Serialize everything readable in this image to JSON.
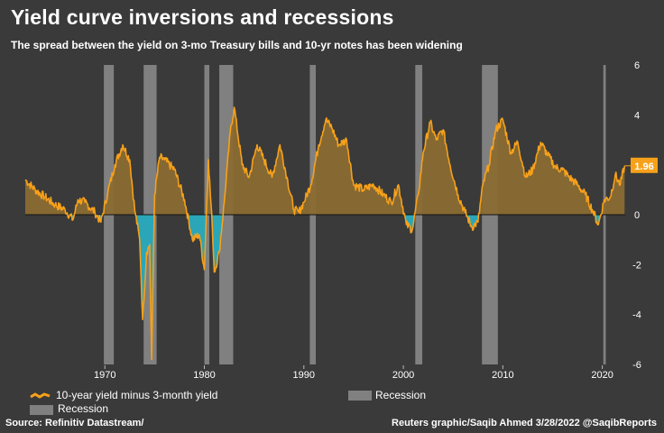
{
  "title": "Yield curve inversions and recessions",
  "subtitle": "The spread between the yield on 3-mo Treasury bills and 10-yr notes has been widening",
  "legend": {
    "line_label": "10-year yield minus 3-month yield",
    "recession_label_1": "Recession",
    "recession_label_2": "Recession"
  },
  "source": "Source: Refinitiv Datastream/",
  "credit": "Reuters graphic/Saqib Ahmed 3/28/2022 @SaqibReports",
  "colors": {
    "background": "#3a3a3a",
    "line": "#f7a11a",
    "area_positive": "#8a6a32",
    "area_negative": "#2aa6b8",
    "recession": "#808080",
    "callout": "#f7a11a"
  },
  "chart_data": {
    "type": "area",
    "title": "Yield curve inversions and recessions",
    "ylim": [
      -6,
      6
    ],
    "xlim": [
      1962,
      2022.3
    ],
    "yticks": [
      6,
      4,
      2,
      0,
      -2,
      -4,
      -6
    ],
    "xticks": [
      1970,
      1980,
      1990,
      2000,
      2010,
      2020
    ],
    "latest_value_label": "1.96",
    "grid": false,
    "recessions": [
      [
        1969.9,
        1970.9
      ],
      [
        1973.9,
        1975.2
      ],
      [
        1980.0,
        1980.5
      ],
      [
        1981.5,
        1982.9
      ],
      [
        1990.6,
        1991.2
      ],
      [
        2001.2,
        2001.9
      ],
      [
        2007.9,
        2009.5
      ],
      [
        2020.1,
        2020.35
      ]
    ],
    "series": [
      {
        "name": "10-year yield minus 3-month yield",
        "points": [
          [
            1962.0,
            1.4
          ],
          [
            1963.0,
            1.0
          ],
          [
            1964.0,
            0.7
          ],
          [
            1965.0,
            0.4
          ],
          [
            1966.0,
            0.2
          ],
          [
            1966.8,
            -0.2
          ],
          [
            1967.3,
            0.6
          ],
          [
            1968.0,
            0.5
          ],
          [
            1969.0,
            0.1
          ],
          [
            1969.6,
            -0.3
          ],
          [
            1970.3,
            0.9
          ],
          [
            1971.0,
            2.0
          ],
          [
            1971.8,
            2.8
          ],
          [
            1972.5,
            2.2
          ],
          [
            1973.0,
            0.2
          ],
          [
            1973.5,
            -1.0
          ],
          [
            1973.8,
            -4.2
          ],
          [
            1974.2,
            -1.5
          ],
          [
            1974.5,
            -1.2
          ],
          [
            1974.7,
            -5.8
          ],
          [
            1975.0,
            0.8
          ],
          [
            1975.5,
            2.3
          ],
          [
            1976.0,
            2.2
          ],
          [
            1977.0,
            1.8
          ],
          [
            1978.0,
            0.6
          ],
          [
            1978.8,
            -1.0
          ],
          [
            1979.5,
            -0.8
          ],
          [
            1980.0,
            -2.2
          ],
          [
            1980.4,
            2.2
          ],
          [
            1980.8,
            -0.5
          ],
          [
            1981.0,
            -2.3
          ],
          [
            1981.5,
            -1.5
          ],
          [
            1982.0,
            0.5
          ],
          [
            1982.6,
            3.3
          ],
          [
            1983.0,
            4.3
          ],
          [
            1983.8,
            2.0
          ],
          [
            1984.5,
            1.5
          ],
          [
            1985.3,
            2.8
          ],
          [
            1986.0,
            2.2
          ],
          [
            1986.8,
            1.5
          ],
          [
            1987.6,
            2.8
          ],
          [
            1988.3,
            1.5
          ],
          [
            1989.0,
            0.2
          ],
          [
            1989.5,
            0.1
          ],
          [
            1990.0,
            0.5
          ],
          [
            1990.7,
            1.2
          ],
          [
            1991.5,
            2.8
          ],
          [
            1992.2,
            3.8
          ],
          [
            1992.8,
            3.5
          ],
          [
            1993.5,
            2.8
          ],
          [
            1994.3,
            3.0
          ],
          [
            1995.0,
            1.2
          ],
          [
            1996.0,
            1.0
          ],
          [
            1997.0,
            1.2
          ],
          [
            1998.0,
            0.8
          ],
          [
            1998.8,
            0.5
          ],
          [
            1999.5,
            1.2
          ],
          [
            2000.3,
            -0.4
          ],
          [
            2000.9,
            -0.6
          ],
          [
            2001.5,
            0.8
          ],
          [
            2002.0,
            2.5
          ],
          [
            2002.7,
            3.7
          ],
          [
            2003.3,
            3.0
          ],
          [
            2004.0,
            3.4
          ],
          [
            2004.7,
            2.0
          ],
          [
            2005.5,
            0.8
          ],
          [
            2006.2,
            0.1
          ],
          [
            2006.9,
            -0.5
          ],
          [
            2007.5,
            -0.3
          ],
          [
            2008.0,
            1.2
          ],
          [
            2008.6,
            2.0
          ],
          [
            2009.3,
            3.4
          ],
          [
            2010.0,
            3.8
          ],
          [
            2010.8,
            2.5
          ],
          [
            2011.5,
            2.9
          ],
          [
            2012.3,
            1.5
          ],
          [
            2013.0,
            1.8
          ],
          [
            2013.8,
            2.9
          ],
          [
            2014.5,
            2.4
          ],
          [
            2015.3,
            1.9
          ],
          [
            2016.0,
            1.8
          ],
          [
            2016.7,
            1.5
          ],
          [
            2017.5,
            1.2
          ],
          [
            2018.3,
            0.8
          ],
          [
            2019.0,
            0.2
          ],
          [
            2019.6,
            -0.4
          ],
          [
            2020.2,
            0.6
          ],
          [
            2020.8,
            0.7
          ],
          [
            2021.3,
            1.6
          ],
          [
            2021.8,
            1.2
          ],
          [
            2022.24,
            1.96
          ]
        ]
      }
    ]
  }
}
